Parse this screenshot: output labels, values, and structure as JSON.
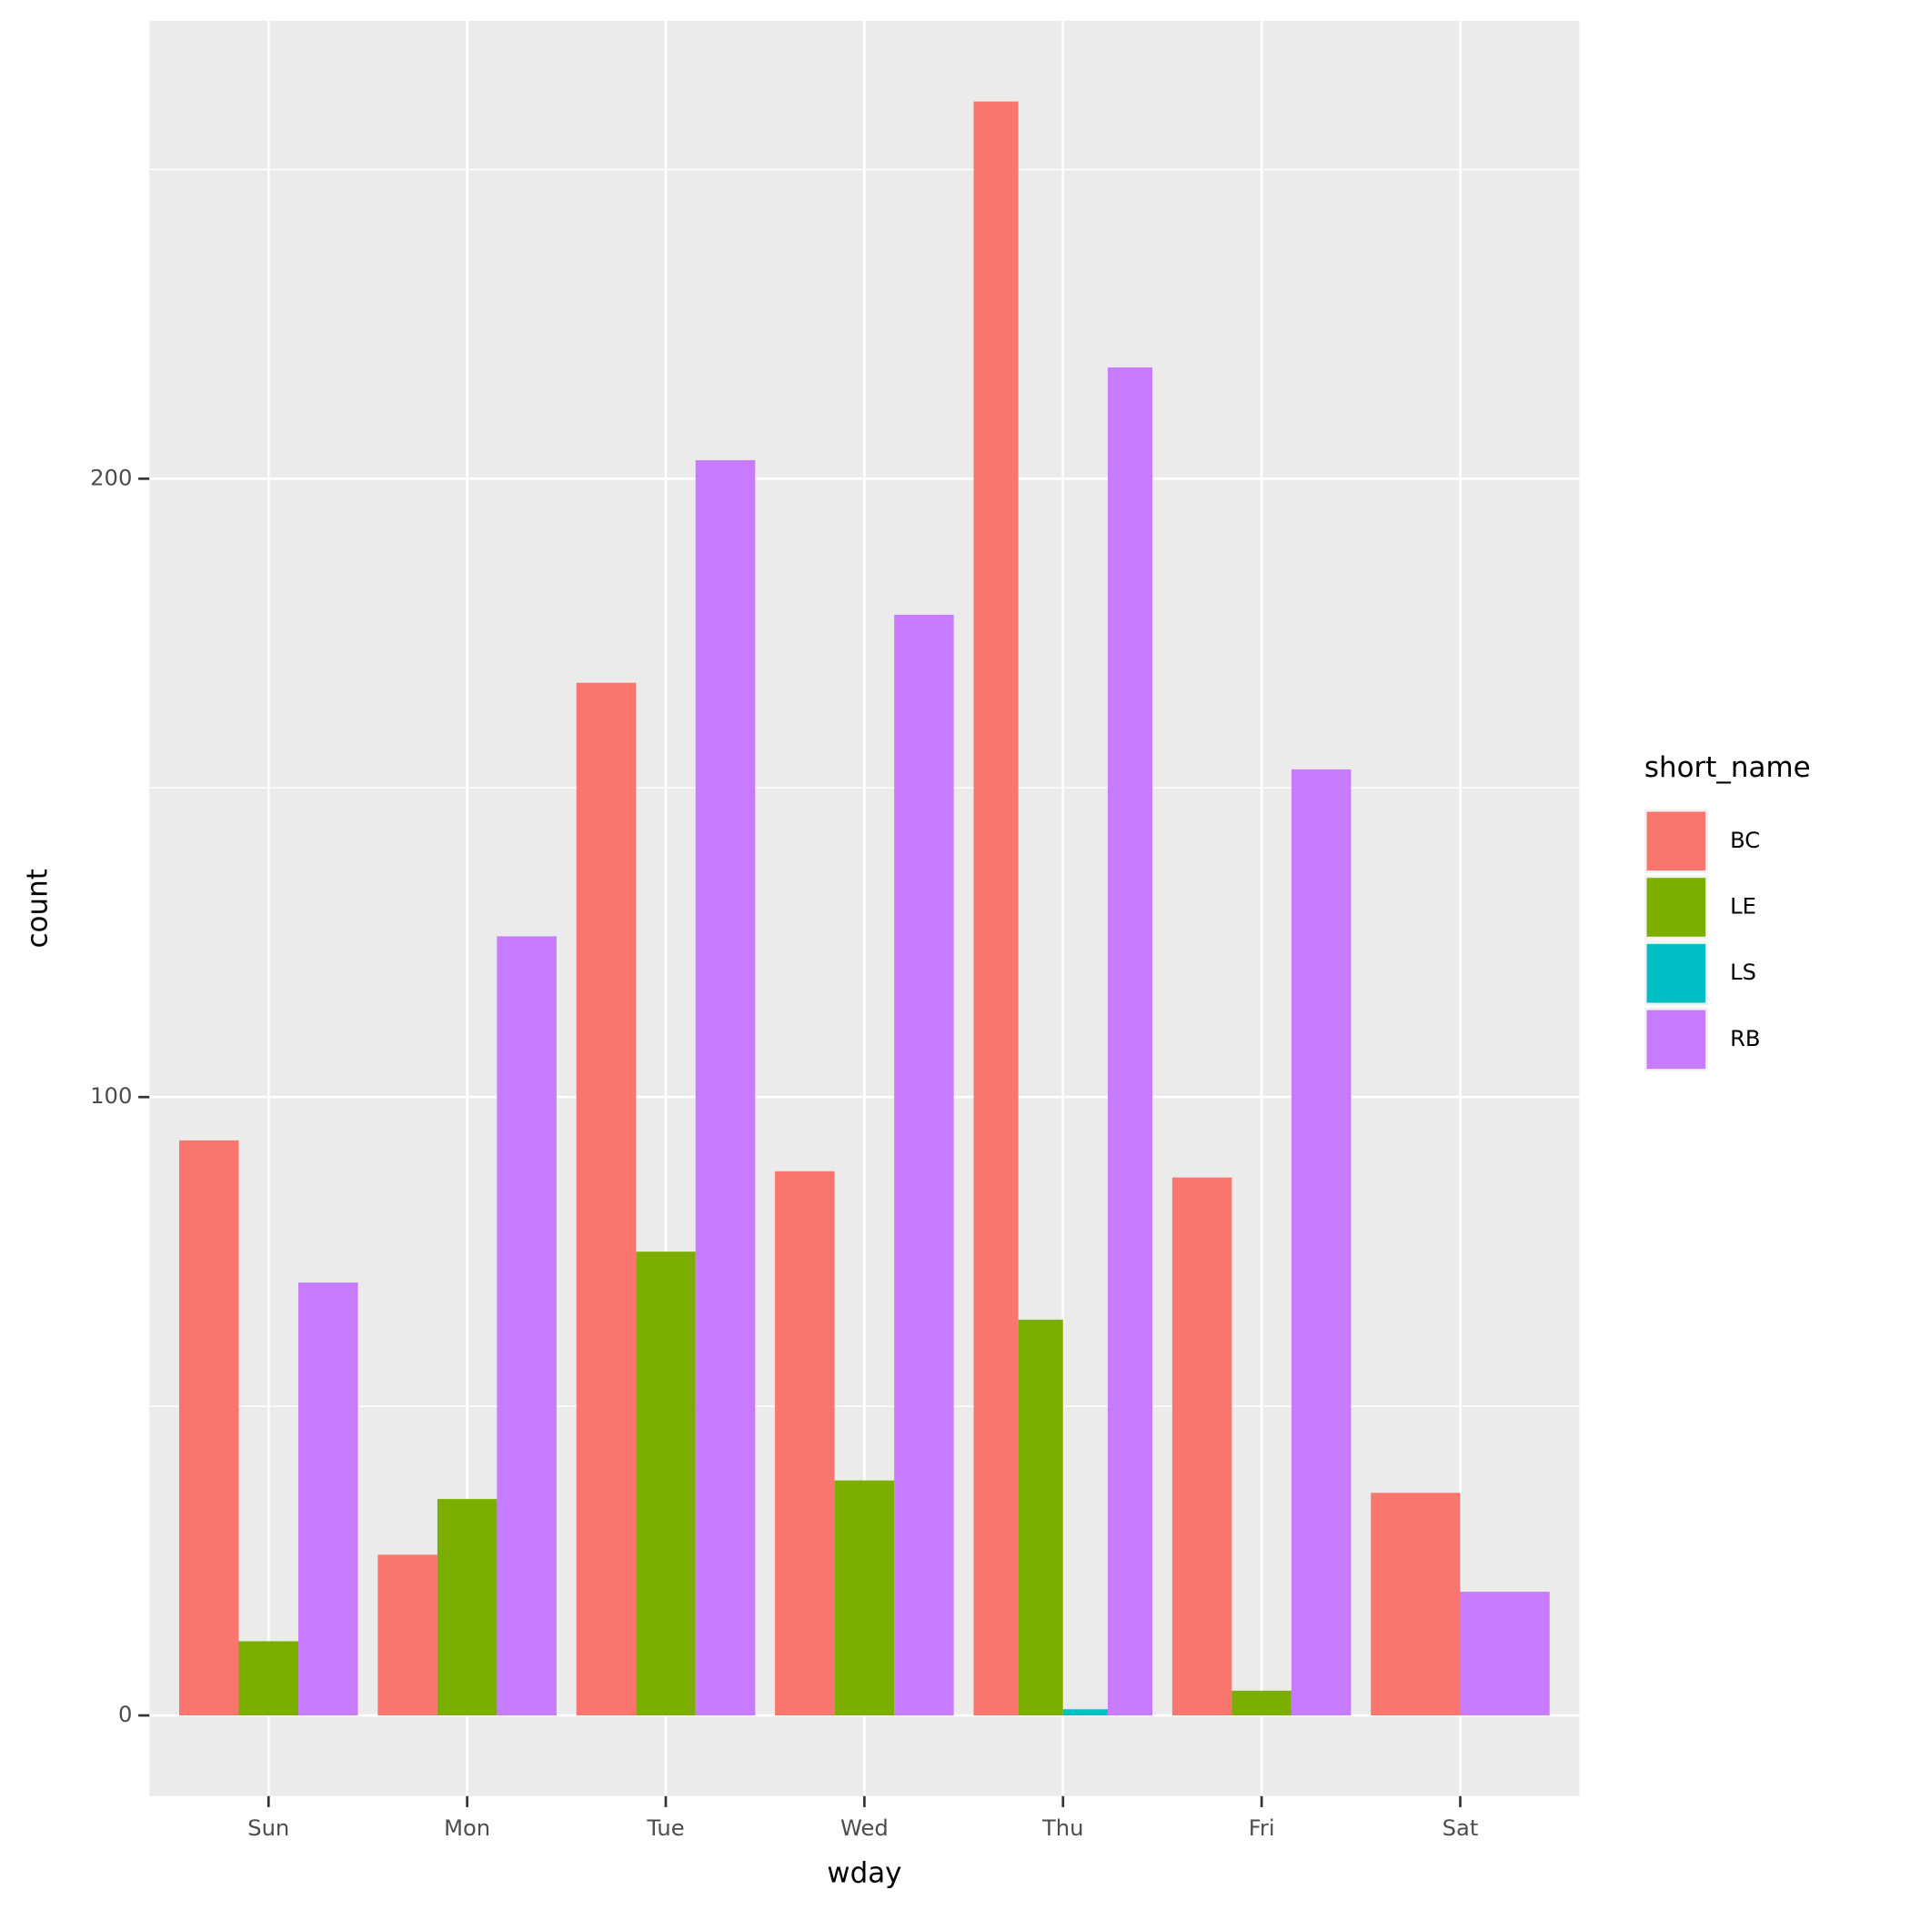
{
  "chart_data": {
    "type": "bar",
    "x_label": "wday",
    "y_label": "count",
    "legend_title": "short_name",
    "categories": [
      "Sun",
      "Mon",
      "Tue",
      "Wed",
      "Thu",
      "Fri",
      "Sat"
    ],
    "series": [
      {
        "name": "BC",
        "color": "#F8766D",
        "values": [
          93,
          26,
          167,
          88,
          261,
          87,
          36
        ]
      },
      {
        "name": "LE",
        "color": "#7CAE00",
        "values": [
          12,
          35,
          75,
          38,
          64,
          4,
          null
        ]
      },
      {
        "name": "LS",
        "color": "#00BFC4",
        "values": [
          null,
          null,
          null,
          null,
          1,
          null,
          null
        ]
      },
      {
        "name": "RB",
        "color": "#C77CFF",
        "values": [
          70,
          126,
          203,
          178,
          218,
          153,
          20
        ]
      }
    ],
    "ylim": [
      -13.05,
      274.05
    ],
    "yticks": [
      0,
      100,
      200
    ],
    "yminor": [
      50,
      150,
      250
    ],
    "grid": true,
    "legend": "right"
  }
}
